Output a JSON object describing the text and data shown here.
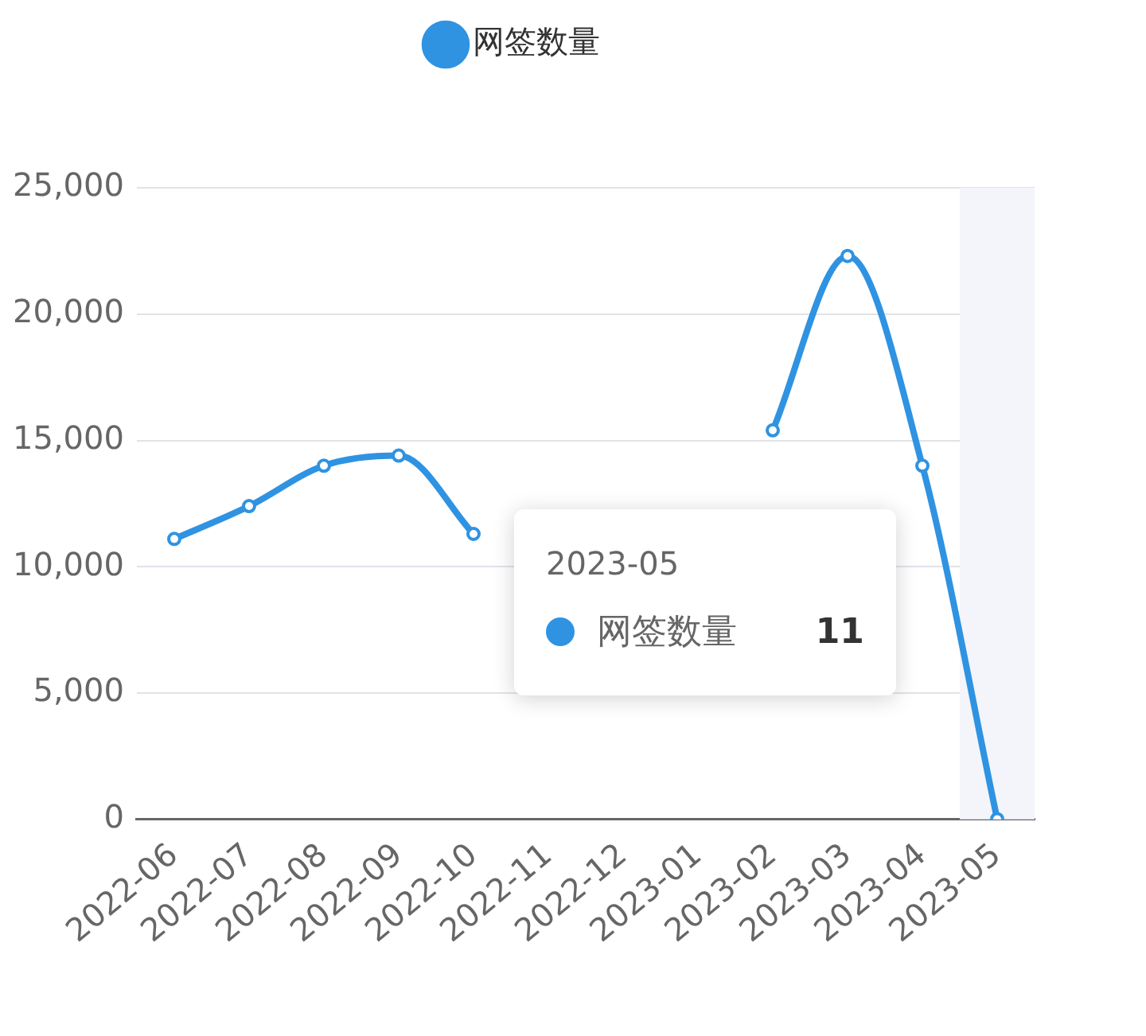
{
  "chart_data": {
    "type": "line",
    "categories": [
      "2022-06",
      "2022-07",
      "2022-08",
      "2022-09",
      "2022-10",
      "2022-11",
      "2022-12",
      "2023-01",
      "2023-02",
      "2023-03",
      "2023-04",
      "2023-05"
    ],
    "series": [
      {
        "name": "网签数量",
        "color": "#2f93e2",
        "values": [
          11100,
          12400,
          14000,
          14400,
          11300,
          null,
          null,
          null,
          15400,
          22300,
          14000,
          11
        ]
      }
    ],
    "ylim": [
      0,
      25000
    ],
    "yticks": [
      {
        "value": 0,
        "label": "0"
      },
      {
        "value": 5000,
        "label": "5,000"
      },
      {
        "value": 10000,
        "label": "10,000"
      },
      {
        "value": 15000,
        "label": "15,000"
      },
      {
        "value": 20000,
        "label": "20,000"
      },
      {
        "value": 25000,
        "label": "25,000"
      }
    ],
    "grid": "y",
    "legend": "top",
    "marker": "circle",
    "line_style": "solid",
    "bands": [
      {
        "axis": "x",
        "from": "2023-05",
        "to": "2023-05",
        "color": "#f3f5fa"
      }
    ],
    "annotations": [
      "2023-05",
      "网签数量",
      "11"
    ]
  }
}
